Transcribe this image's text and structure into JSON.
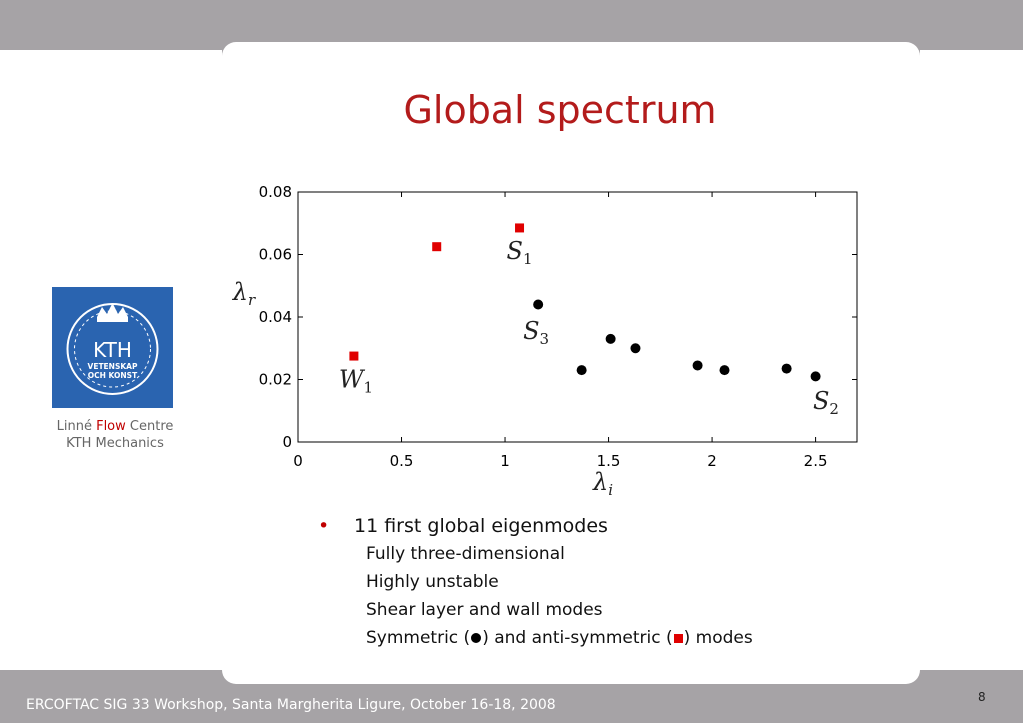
{
  "slide": {
    "title": "Global spectrum",
    "page_number": "8",
    "footer": "ERCOFTAC SIG 33 Workshop, Santa Margherita Ligure, October 16-18, 2008"
  },
  "logo": {
    "text_main": "KTH",
    "text_line1": "VETENSKAP",
    "text_line2": "OCH KONST",
    "caption_part1": "Linné",
    "caption_flow": "Flow",
    "caption_part2": "Centre",
    "caption_line2": "KTH Mechanics"
  },
  "bullets": {
    "main": "11 first global eigenmodes",
    "sub": [
      "Fully three-dimensional",
      "Highly unstable",
      "Shear layer and wall modes"
    ],
    "last_prefix": "Symmetric (",
    "last_mid": ") and anti-symmetric (",
    "last_suffix": ") modes"
  },
  "chart_data": {
    "type": "scatter",
    "xlabel": "λi",
    "ylabel": "λr",
    "xlim": [
      0,
      2.7
    ],
    "ylim": [
      0,
      0.08
    ],
    "xticks": [
      "0",
      "0.5",
      "1",
      "1.5",
      "2",
      "2.5"
    ],
    "yticks": [
      "0",
      "0.02",
      "0.04",
      "0.06",
      "0.08"
    ],
    "grid": false,
    "colors": {
      "symmetric": "#000000",
      "antisymmetric": "#e00000"
    },
    "series": [
      {
        "marker": "circle",
        "x": [
          1.16,
          1.37,
          1.51,
          1.63,
          1.93,
          2.06,
          2.36,
          2.5
        ],
        "y": [
          0.044,
          0.023,
          0.033,
          0.03,
          0.0245,
          0.023,
          0.0235,
          0.021
        ]
      },
      {
        "marker": "square",
        "x": [
          0.27,
          0.67,
          1.07
        ],
        "y": [
          0.0275,
          0.0625,
          0.0685
        ]
      }
    ],
    "annotations": [
      {
        "base": "S",
        "sub": "1",
        "x": 1.07,
        "y": 0.0585
      },
      {
        "base": "S",
        "sub": "3",
        "x": 1.15,
        "y": 0.033
      },
      {
        "base": "W",
        "sub": "1",
        "x": 0.28,
        "y": 0.0175
      },
      {
        "base": "S",
        "sub": "2",
        "x": 2.55,
        "y": 0.0105
      }
    ]
  }
}
